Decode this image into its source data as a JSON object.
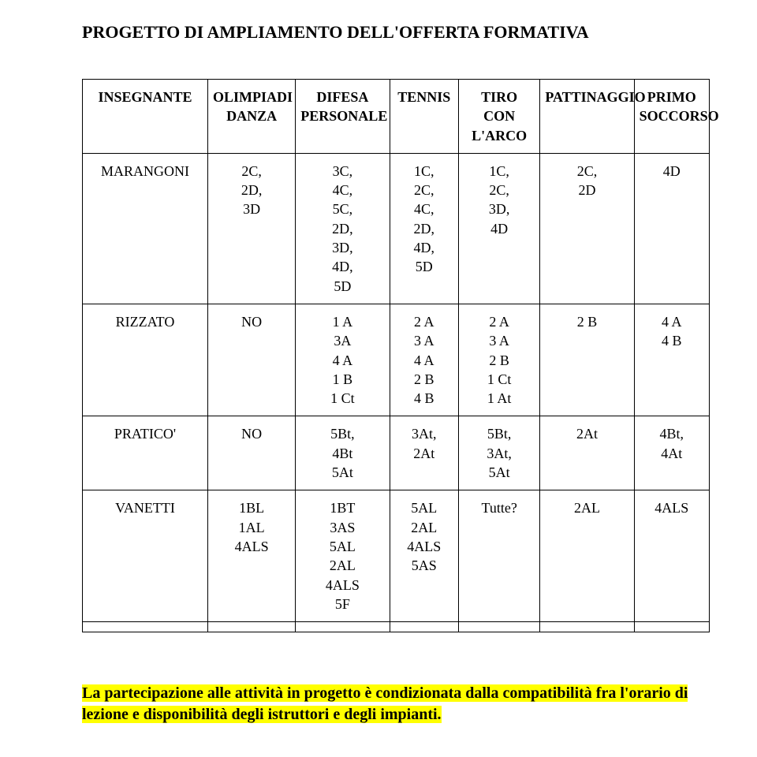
{
  "title": "PROGETTO DI AMPLIAMENTO DELL'OFFERTA FORMATIVA",
  "columns": [
    "INSEGNANTE",
    "OLIMPIADI DANZA",
    "DIFESA PERSONALE",
    "TENNIS",
    "TIRO CON L'ARCO",
    "PATTINAGGIO",
    "PRIMO SOCCORSO"
  ],
  "rows": [
    {
      "c0": "MARANGONI",
      "c1": "2C,\n2D,\n3D",
      "c2": "3C,\n4C,\n5C,\n2D,\n3D,\n4D,\n5D",
      "c3": "1C,\n2C,\n4C,\n2D,\n4D,\n5D",
      "c4": "1C,\n2C,\n3D,\n4D",
      "c5": "2C,\n2D",
      "c6": "4D"
    },
    {
      "c0": "RIZZATO",
      "c1": "NO",
      "c2": "1 A\n3A\n4 A\n1 B\n1 Ct",
      "c3": "2 A\n3 A\n4 A\n2 B\n4 B",
      "c4": "2 A\n3 A\n2 B\n1 Ct\n1 At",
      "c5": "2 B",
      "c6": "4 A\n4 B"
    },
    {
      "c0": "PRATICO'",
      "c1": "NO",
      "c2": "5Bt,\n4Bt\n5At",
      "c3": "3At,\n2At",
      "c4": "5Bt,\n3At,\n5At",
      "c5": "2At",
      "c6": "4Bt,\n4At"
    },
    {
      "c0": "VANETTI",
      "c1": "1BL\n1AL\n4ALS",
      "c2": "1BT\n3AS\n5AL\n2AL\n4ALS\n5F",
      "c3": "5AL\n2AL\n4ALS\n5AS",
      "c4": "Tutte?",
      "c5": "2AL",
      "c6": "4ALS"
    }
  ],
  "footnote": "La partecipazione alle attività in progetto è condizionata dalla compatibilità fra l'orario di lezione e disponibilità degli istruttori e degli impianti.",
  "style": {
    "background": "#ffffff",
    "text_color": "#000000",
    "border_color": "#000000",
    "highlight_bg": "#ffff00",
    "font_family": "Times New Roman",
    "title_fontsize": 22,
    "cell_fontsize": 18,
    "footnote_fontsize": 20
  }
}
